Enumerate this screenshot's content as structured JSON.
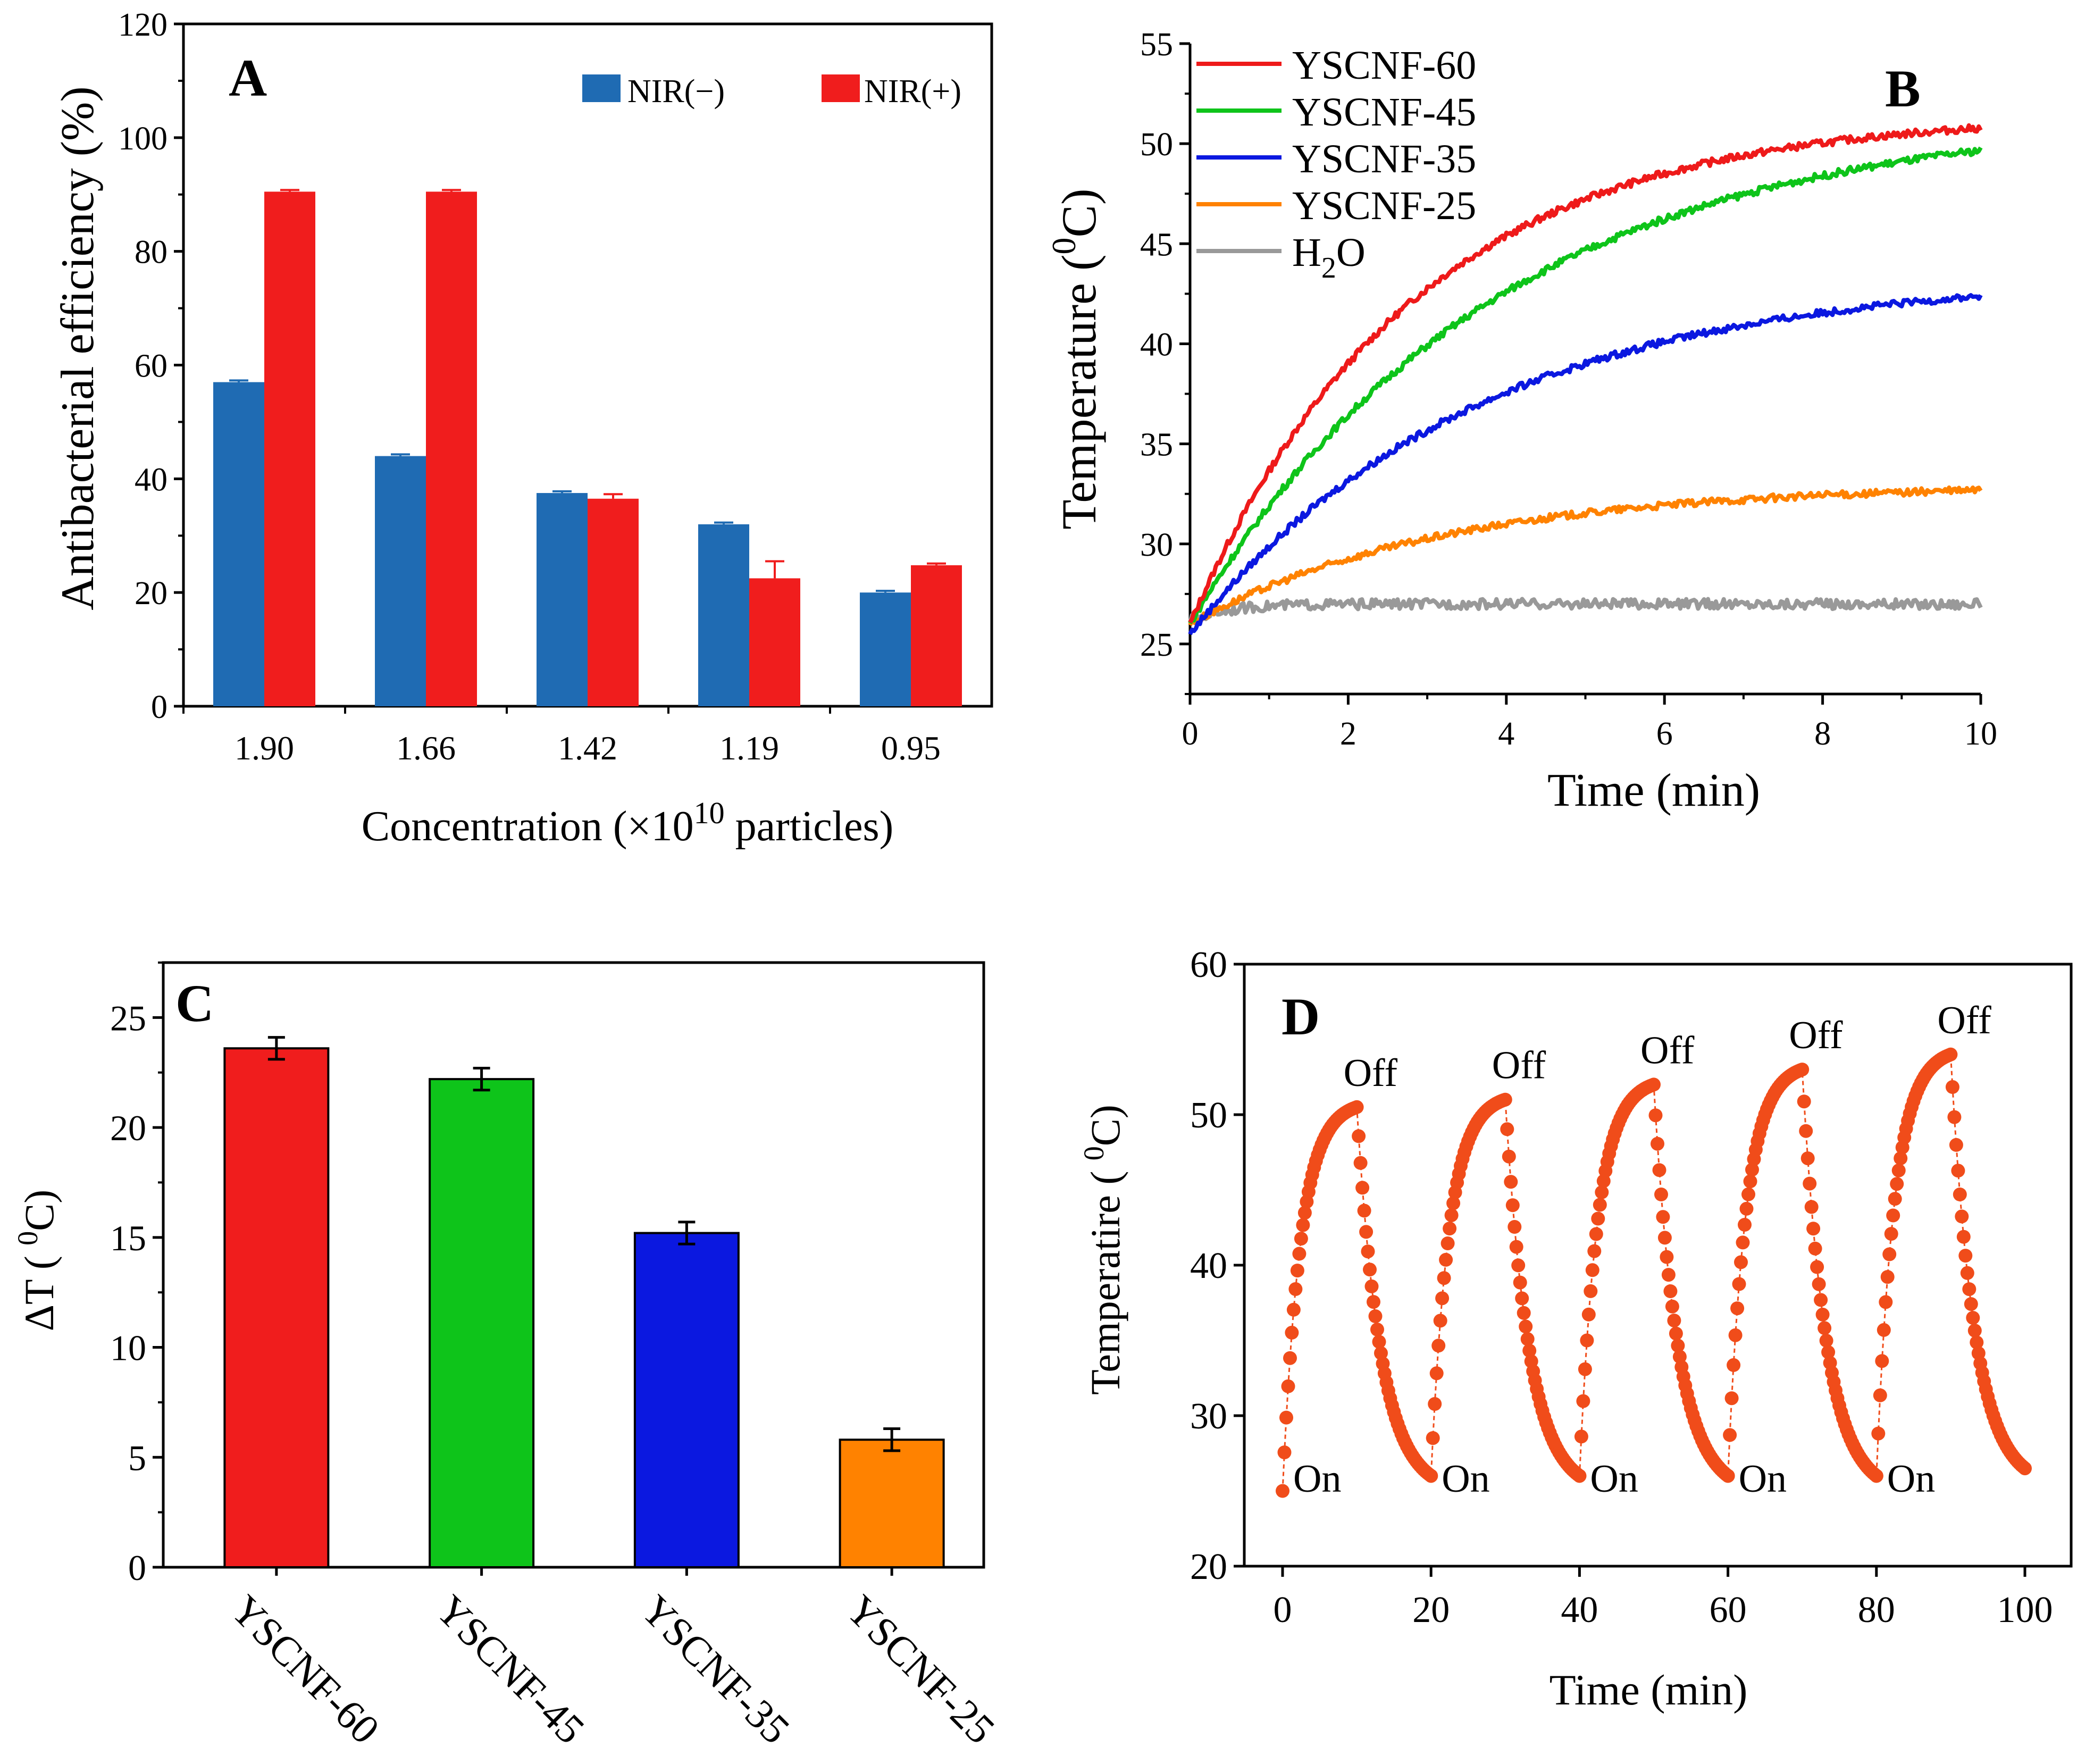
{
  "colors": {
    "blue_bar": "#1f6bb3",
    "red_bar": "#f01d1d",
    "green": "#0ec41a",
    "blue": "#0b18e0",
    "orange": "#ff8200",
    "gray": "#999999",
    "red_line": "#ee1a1a",
    "curve_D": "#f04c1a",
    "axis": "#000000"
  },
  "chart_data": [
    {
      "panel": "A",
      "type": "bar",
      "xlabel_main": "Concentration (×10",
      "xlabel_sup": "10",
      "xlabel_tail": " particles)",
      "ylabel": "Antibacterial efficiency  (%)",
      "ylim": [
        0,
        120
      ],
      "yticks": [
        "0",
        "20",
        "40",
        "60",
        "80",
        "100",
        "120"
      ],
      "categories": [
        "1.90",
        "1.66",
        "1.42",
        "1.19",
        "0.95"
      ],
      "series": [
        {
          "name": "NIR(−)",
          "color": "#1f6bb3",
          "values": [
            57,
            44,
            37.5,
            32,
            20
          ],
          "errors": [
            0.3,
            0.3,
            0.3,
            0.3,
            0.3
          ]
        },
        {
          "name": "NIR(+)",
          "color": "#f01d1d",
          "values": [
            90.5,
            90.5,
            36.5,
            22.5,
            24.8
          ],
          "errors": [
            0.3,
            0.3,
            0.8,
            3,
            0.3
          ]
        }
      ],
      "legend_position": "top-right"
    },
    {
      "panel": "B",
      "type": "line",
      "xlabel": "Time  (min)",
      "ylabel_main": "Temperature  (",
      "ylabel_sup": "0",
      "ylabel_tail": "C)",
      "xlim": [
        0,
        10
      ],
      "ylim": [
        22.5,
        55
      ],
      "xticks": [
        "0",
        "2",
        "4",
        "6",
        "8",
        "10"
      ],
      "yticks": [
        "25",
        "30",
        "35",
        "40",
        "45",
        "50",
        "55"
      ],
      "series": [
        {
          "name": "YSCNF-60",
          "color": "#ee1a1a",
          "start": 26,
          "plateau": 51.5,
          "tau": 2.8
        },
        {
          "name": "YSCNF-45",
          "color": "#0ec41a",
          "start": 26,
          "plateau": 51.5,
          "tau": 3.8
        },
        {
          "name": "YSCNF-35",
          "color": "#0b18e0",
          "start": 25.5,
          "plateau": 43.5,
          "tau": 3.6
        },
        {
          "name": "YSCNF-25",
          "color": "#ff8200",
          "start": 26,
          "plateau": 33,
          "tau": 3.2
        },
        {
          "name": "H",
          "sub": "2",
          "tail": "O",
          "color": "#999999",
          "start": 26.2,
          "plateau": 27,
          "tau": 0.5
        }
      ],
      "legend_position": "top-left"
    },
    {
      "panel": "C",
      "type": "bar",
      "ylabel_main": "ΔT ( ",
      "ylabel_sup": "0",
      "ylabel_tail": "C)",
      "ylim": [
        0,
        27.5
      ],
      "yticks": [
        "0",
        "5",
        "10",
        "15",
        "20",
        "25"
      ],
      "categories": [
        "YSCNF-60",
        "YSCNF-45",
        "YSCNF-35",
        "YSCNF-25"
      ],
      "values": [
        23.6,
        22.2,
        15.2,
        5.8
      ],
      "errors": [
        0.5,
        0.5,
        0.5,
        0.5
      ],
      "colors": [
        "#f01d1d",
        "#0ec41a",
        "#0b18e0",
        "#ff8200"
      ]
    },
    {
      "panel": "D",
      "type": "scatter",
      "xlabel": "Time  (min)",
      "ylabel_main": "Temperatire ( ",
      "ylabel_sup": "0",
      "ylabel_tail": "C)",
      "xlim": [
        0,
        100
      ],
      "ylim": [
        20,
        60
      ],
      "xticks": [
        "0",
        "20",
        "40",
        "60",
        "80",
        "100"
      ],
      "yticks": [
        "20",
        "30",
        "40",
        "50",
        "60"
      ],
      "color": "#f04c1a",
      "cycles": [
        {
          "on_time": 0,
          "start": 25,
          "peak": 50.5,
          "end": 26
        },
        {
          "on_time": 20,
          "start": 26,
          "peak": 51,
          "end": 26
        },
        {
          "on_time": 40,
          "start": 26,
          "peak": 52,
          "end": 26
        },
        {
          "on_time": 60,
          "start": 26,
          "peak": 53,
          "end": 26
        },
        {
          "on_time": 80,
          "start": 26,
          "peak": 54,
          "end": 26.5
        }
      ],
      "on_label": "On",
      "off_label": "Off"
    }
  ]
}
